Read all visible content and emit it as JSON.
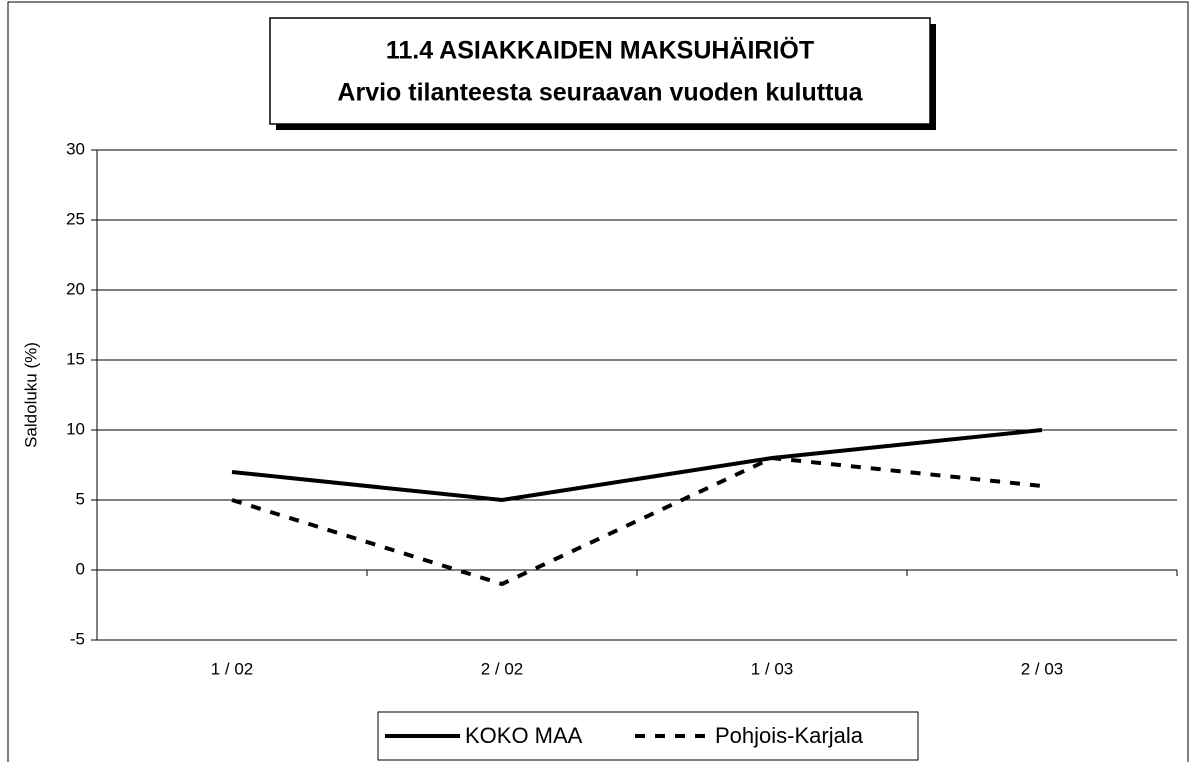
{
  "chart_data": {
    "type": "line",
    "title": "11.4 ASIAKKAIDEN MAKSUHÄIRIÖT",
    "subtitle": "Arvio tilanteesta seuraavan vuoden kuluttua",
    "y_label": "Saldoluku (%)",
    "categories": [
      "1 / 02",
      "2 / 02",
      "1 / 03",
      "2 / 03"
    ],
    "series": [
      {
        "name": "KOKO MAA",
        "color": "#000000",
        "style": "solid",
        "values": [
          7,
          5,
          8,
          10
        ]
      },
      {
        "name": "Pohjois-Karjala",
        "color": "#000000",
        "style": "dashed",
        "values": [
          5,
          -1,
          8,
          6
        ]
      }
    ],
    "ylim": [
      -5,
      30
    ],
    "yticks": [
      -5,
      0,
      5,
      10,
      15,
      20,
      25,
      30
    ],
    "grid": true,
    "legend": "bottom"
  }
}
